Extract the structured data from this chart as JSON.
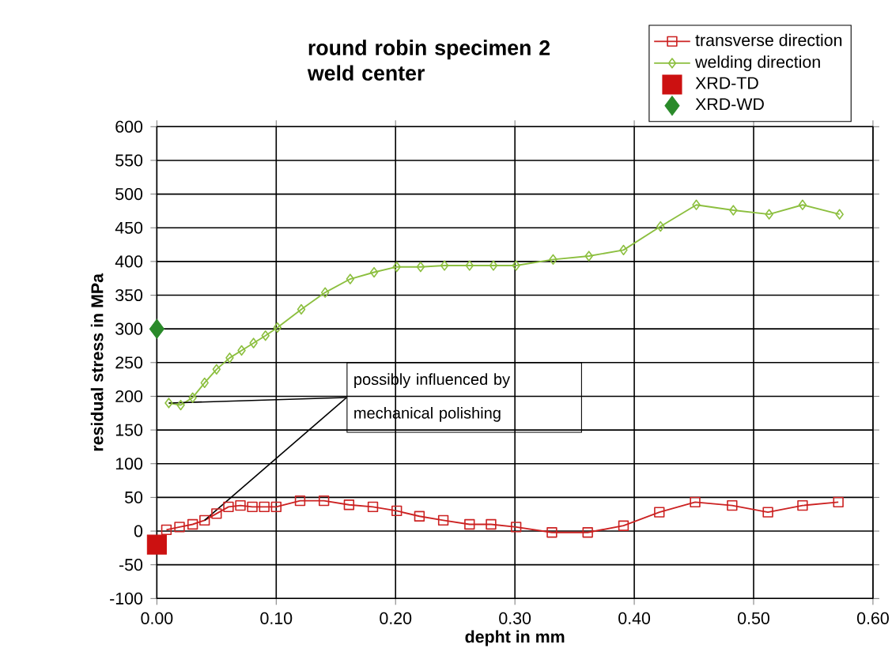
{
  "chart_data": {
    "type": "line",
    "title": "round robin specimen 2 weld center",
    "xlabel": "depht in mm",
    "ylabel": "residual stress in MPa",
    "xlim": [
      0,
      0.6
    ],
    "ylim": [
      -100,
      600
    ],
    "xticks": [
      {
        "value": 0,
        "label": "0.00"
      },
      {
        "value": 0.1,
        "label": "0.10"
      },
      {
        "value": 0.2,
        "label": "0.20"
      },
      {
        "value": 0.3,
        "label": "0.30"
      },
      {
        "value": 0.4,
        "label": "0.40"
      },
      {
        "value": 0.5,
        "label": "0.50"
      },
      {
        "value": 0.6,
        "label": "0.60"
      }
    ],
    "yticks": [
      -100,
      -50,
      0,
      50,
      100,
      150,
      200,
      250,
      300,
      350,
      400,
      450,
      500,
      550,
      600
    ],
    "grid": true,
    "legend": "top right",
    "annotations": [
      {
        "text": "possibly influenced by mechanical polishing",
        "x": 0.01,
        "y": 190
      }
    ],
    "series": [
      {
        "name": "transverse direction",
        "marker": "square",
        "color": "#cc2222",
        "x": [
          0.008,
          0.019,
          0.03,
          0.04,
          0.05,
          0.06,
          0.07,
          0.08,
          0.09,
          0.1,
          0.12,
          0.14,
          0.161,
          0.181,
          0.201,
          0.22,
          0.24,
          0.262,
          0.28,
          0.301,
          0.331,
          0.361,
          0.391,
          0.421,
          0.451,
          0.482,
          0.512,
          0.541,
          0.571
        ],
        "values": [
          2,
          6,
          10,
          16,
          26,
          36,
          38,
          36,
          36,
          36,
          45,
          45,
          39,
          36,
          30,
          22,
          16,
          10,
          10,
          6,
          -2,
          -2,
          8,
          28,
          43,
          38,
          28,
          38,
          43
        ]
      },
      {
        "name": "welding direction",
        "marker": "diamond",
        "color": "#8cbf3f",
        "x": [
          0.01,
          0.02,
          0.03,
          0.04,
          0.05,
          0.061,
          0.071,
          0.081,
          0.091,
          0.101,
          0.121,
          0.141,
          0.162,
          0.182,
          0.201,
          0.221,
          0.241,
          0.262,
          0.282,
          0.301,
          0.332,
          0.362,
          0.391,
          0.422,
          0.452,
          0.483,
          0.513,
          0.541,
          0.572
        ],
        "values": [
          190,
          187,
          198,
          220,
          240,
          257,
          268,
          279,
          290,
          302,
          329,
          354,
          374,
          384,
          392,
          392,
          394,
          394,
          394,
          394,
          403,
          408,
          417,
          452,
          484,
          476,
          470,
          484,
          470
        ]
      },
      {
        "name": "XRD-TD",
        "type": "scatter",
        "marker": "square",
        "color": "#cc1111",
        "x": [
          0
        ],
        "values": [
          -20
        ]
      },
      {
        "name": "XRD-WD",
        "type": "scatter",
        "marker": "diamond",
        "color": "#2a8a2a",
        "x": [
          0
        ],
        "values": [
          300
        ]
      }
    ]
  }
}
